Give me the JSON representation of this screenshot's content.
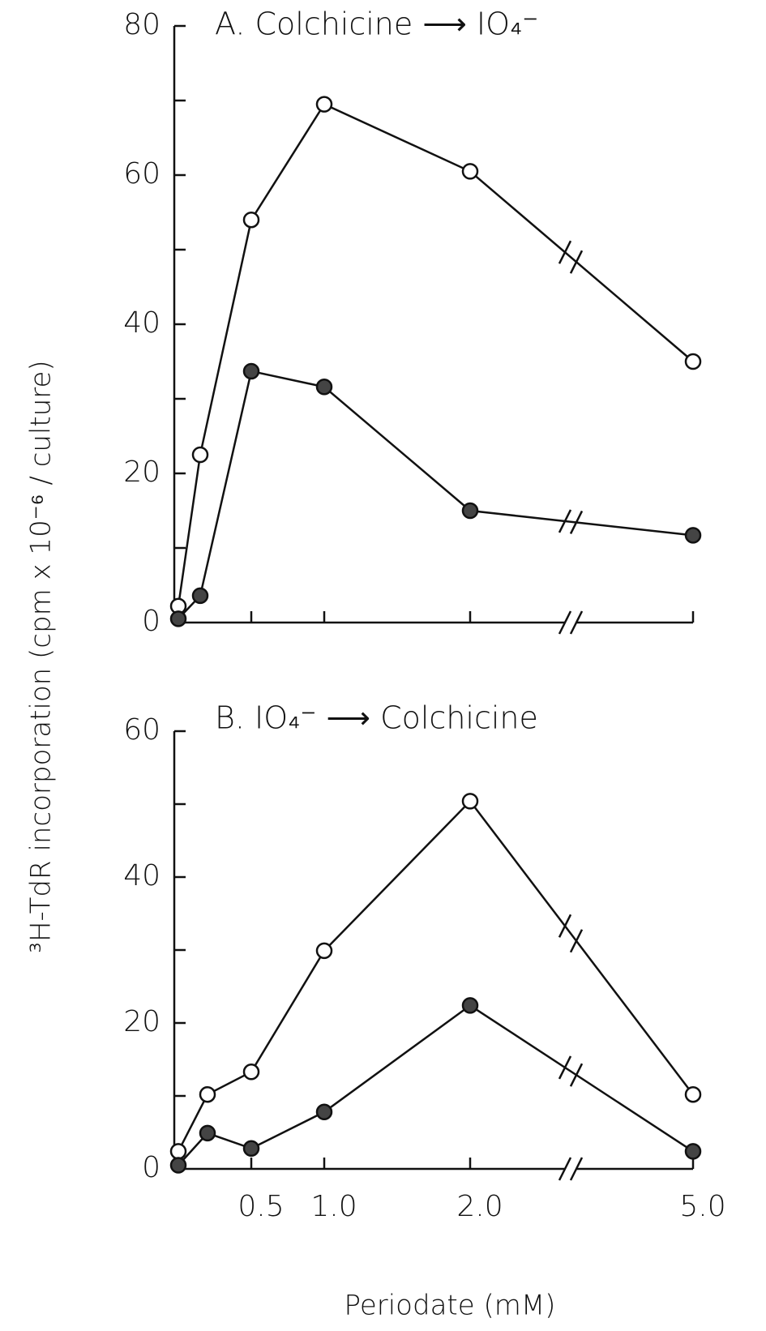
{
  "figure": {
    "ylabel": "³H-TdR incorporation  (cpm x 10⁻⁶ / culture)",
    "xlabel": "Periodate  (mM)"
  },
  "chart_data": [
    {
      "type": "line",
      "title": "A.  Colchicine ⟶ IO₄⁻",
      "x": [
        0,
        0.15,
        0.5,
        1,
        2,
        5
      ],
      "series": [
        {
          "marker": "open",
          "color": "#111111",
          "values": [
            2.2,
            22.5,
            54,
            69.5,
            60.5,
            35
          ]
        },
        {
          "marker": "filled",
          "color": "#111111",
          "values": [
            0.5,
            3.6,
            33.7,
            31.6,
            15,
            11.7
          ]
        }
      ],
      "xlim": [
        0,
        5
      ],
      "x_break": [
        2.65,
        4.2
      ],
      "xticks": [
        0.5,
        1,
        2,
        5
      ],
      "xtick_labels": false,
      "ylim": [
        0,
        80
      ],
      "yticks": [
        0,
        20,
        40,
        60,
        80
      ],
      "yticks_minor": [
        10,
        30,
        50,
        70
      ]
    },
    {
      "type": "line",
      "title": "B.  IO₄⁻ ⟶ Colchicine",
      "x": [
        0,
        0.2,
        0.5,
        1,
        2,
        5
      ],
      "series": [
        {
          "marker": "open",
          "color": "#111111",
          "values": [
            2.4,
            10.2,
            13.3,
            29.9,
            50.4,
            10.2
          ]
        },
        {
          "marker": "filled",
          "color": "#111111",
          "values": [
            0.5,
            4.9,
            2.8,
            7.8,
            22.4,
            2.4
          ]
        }
      ],
      "xlim": [
        0,
        5
      ],
      "x_break": [
        2.65,
        4.2
      ],
      "xticks": [
        0.5,
        {
          "value": 1,
          "label": "1.0"
        },
        {
          "value": 2,
          "label": "2.0"
        },
        {
          "value": 5,
          "label": "5.0"
        }
      ],
      "xtick_labels": true,
      "ylim": [
        0,
        60
      ],
      "yticks": [
        0,
        20,
        40,
        60
      ],
      "yticks_minor": [
        10,
        30,
        50
      ]
    }
  ]
}
